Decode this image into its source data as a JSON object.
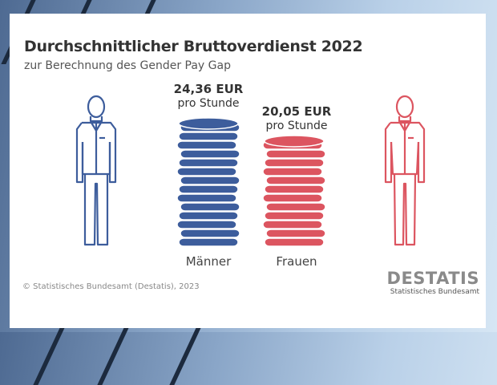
{
  "chart_data": {
    "type": "bar",
    "title": "Durchschnittlicher Bruttoverdienst 2022",
    "subtitle": "zur Berechnung des Gender Pay Gap",
    "categories": [
      "Männer",
      "Frauen"
    ],
    "values": [
      24.36,
      20.05
    ],
    "unit": "EUR pro Stunde",
    "value_labels": [
      "24,36 EUR",
      "20,05 EUR"
    ],
    "per_label": "pro Stunde",
    "colors": [
      "#3d5d9c",
      "#dc5560"
    ]
  },
  "footer": {
    "source": "© Statistisches Bundesamt (Destatis), 2023"
  },
  "logo": {
    "name": "DESTATIS",
    "tagline": "Statistisches Bundesamt"
  }
}
